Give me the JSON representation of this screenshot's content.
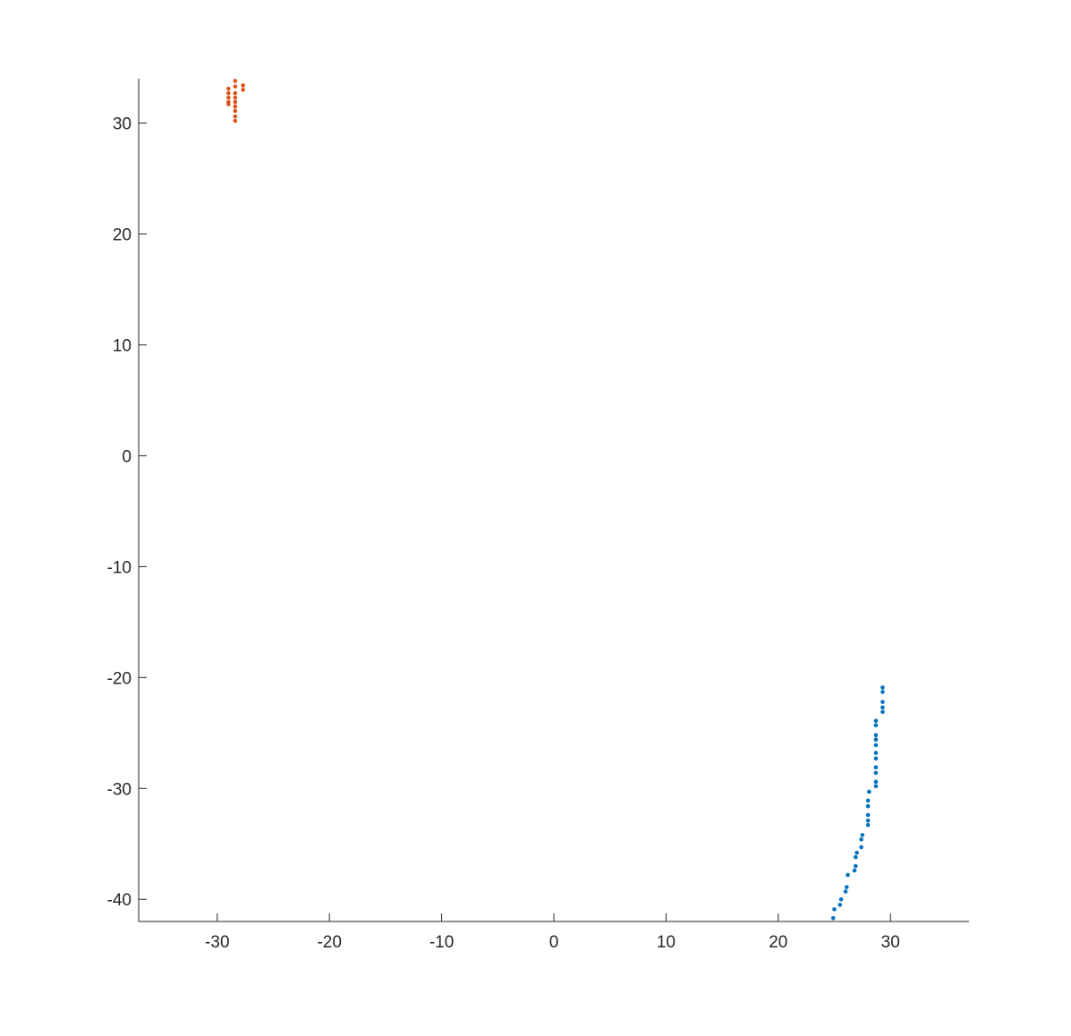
{
  "chart_data": {
    "type": "scatter",
    "title": "",
    "xlabel": "",
    "ylabel": "",
    "xlim": [
      -37,
      37
    ],
    "ylim": [
      -42,
      34
    ],
    "grid": false,
    "legend": "none",
    "xticks": [
      -30,
      -20,
      -10,
      0,
      10,
      20,
      30
    ],
    "xtick_labels": [
      "-30",
      "-20",
      "-10",
      "0",
      "10",
      "20",
      "30"
    ],
    "yticks": [
      -40,
      -30,
      -20,
      -10,
      0,
      10,
      20,
      30
    ],
    "ytick_labels": [
      "-40",
      "-30",
      "-20",
      "-10",
      "0",
      "10",
      "20",
      "30"
    ],
    "series": [
      {
        "color": "#0072BD",
        "points": [
          [
            24.9,
            -41.7
          ],
          [
            25.0,
            -40.9
          ],
          [
            25.5,
            -40.5
          ],
          [
            25.6,
            -40.0
          ],
          [
            26.0,
            -39.3
          ],
          [
            26.1,
            -38.9
          ],
          [
            26.2,
            -37.8
          ],
          [
            26.8,
            -37.4
          ],
          [
            26.9,
            -37.0
          ],
          [
            26.9,
            -36.2
          ],
          [
            27.0,
            -35.8
          ],
          [
            27.4,
            -35.3
          ],
          [
            27.4,
            -34.6
          ],
          [
            27.5,
            -34.2
          ],
          [
            28.0,
            -33.3
          ],
          [
            28.0,
            -32.9
          ],
          [
            28.0,
            -32.4
          ],
          [
            28.0,
            -31.6
          ],
          [
            28.0,
            -31.1
          ],
          [
            28.1,
            -30.3
          ],
          [
            28.7,
            -29.8
          ],
          [
            28.7,
            -29.4
          ],
          [
            28.7,
            -28.6
          ],
          [
            28.7,
            -28.1
          ],
          [
            28.7,
            -27.3
          ],
          [
            28.7,
            -26.8
          ],
          [
            28.7,
            -26.1
          ],
          [
            28.7,
            -25.6
          ],
          [
            28.7,
            -25.2
          ],
          [
            28.7,
            -24.3
          ],
          [
            28.7,
            -23.9
          ],
          [
            29.3,
            -23.1
          ],
          [
            29.3,
            -22.7
          ],
          [
            29.3,
            -22.2
          ],
          [
            29.3,
            -21.3
          ],
          [
            29.3,
            -20.9
          ]
        ]
      },
      {
        "color": "#D95319",
        "points": [
          [
            -29.0,
            33.1
          ],
          [
            -29.0,
            32.7
          ],
          [
            -29.0,
            32.3
          ],
          [
            -29.0,
            31.9
          ],
          [
            -29.0,
            31.7
          ],
          [
            -28.4,
            33.8
          ],
          [
            -28.4,
            33.3
          ],
          [
            -28.4,
            32.7
          ],
          [
            -28.4,
            32.3
          ],
          [
            -28.4,
            31.9
          ],
          [
            -28.4,
            31.5
          ],
          [
            -28.4,
            31.1
          ],
          [
            -28.4,
            30.6
          ],
          [
            -28.4,
            30.2
          ],
          [
            -27.7,
            33.4
          ],
          [
            -27.7,
            33.0
          ]
        ]
      }
    ]
  }
}
